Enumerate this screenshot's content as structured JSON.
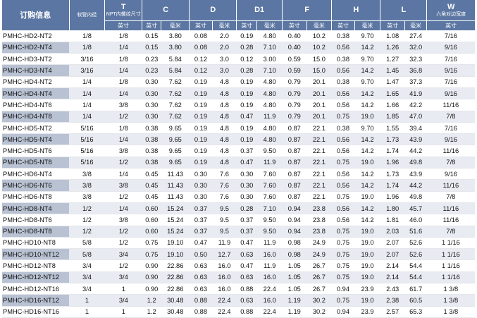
{
  "header": {
    "order_info": "订购信息",
    "hose_id": "软管内径",
    "t_letter": "T",
    "t_sub": "NPT内螺纹尺寸",
    "c": "C",
    "d": "D",
    "d1": "D1",
    "f": "F",
    "h": "H",
    "l": "L",
    "w_letter": "W",
    "w_sub": "六角对边宽度",
    "inch": "英寸",
    "mm": "毫米"
  },
  "rows": [
    [
      "PMHC-HD2-NT2",
      "1/8",
      "1/8",
      "0.15",
      "3.80",
      "0.08",
      "2.0",
      "0.19",
      "4.80",
      "0.40",
      "10.2",
      "0.38",
      "9.70",
      "1.08",
      "27.4",
      "7/16"
    ],
    [
      "PMHC-HD2-NT4",
      "1/8",
      "1/4",
      "0.15",
      "3.80",
      "0.08",
      "2.0",
      "0.28",
      "7.10",
      "0.40",
      "10.2",
      "0.56",
      "14.2",
      "1.26",
      "32.0",
      "9/16"
    ],
    [
      "PMHC-HD3-NT2",
      "3/16",
      "1/8",
      "0.23",
      "5.84",
      "0.12",
      "3.0",
      "0.12",
      "3.00",
      "0.59",
      "15.0",
      "0.38",
      "9.70",
      "1.27",
      "32.3",
      "7/16"
    ],
    [
      "PMHC-HD3-NT4",
      "3/16",
      "1/4",
      "0.23",
      "5.84",
      "0.12",
      "3.0",
      "0.28",
      "7.10",
      "0.59",
      "15.0",
      "0.56",
      "14.2",
      "1.45",
      "36.8",
      "9/16"
    ],
    [
      "PMHC-HD4-NT2",
      "1/4",
      "1/8",
      "0.30",
      "7.62",
      "0.19",
      "4.8",
      "0.19",
      "4.80",
      "0.79",
      "20.1",
      "0.38",
      "9.70",
      "1.47",
      "37.3",
      "7/16"
    ],
    [
      "PMHC-HD4-NT4",
      "1/4",
      "1/4",
      "0.30",
      "7.62",
      "0.19",
      "4.8",
      "0.19",
      "4.80",
      "0.79",
      "20.1",
      "0.56",
      "14.2",
      "1.65",
      "41.9",
      "9/16"
    ],
    [
      "PMHC-HD4-NT6",
      "1/4",
      "3/8",
      "0.30",
      "7.62",
      "0.19",
      "4.8",
      "0.19",
      "4.80",
      "0.79",
      "20.1",
      "0.56",
      "14.2",
      "1.66",
      "42.2",
      "11/16"
    ],
    [
      "PMHC-HD4-NT8",
      "1/4",
      "1/2",
      "0.30",
      "7.62",
      "0.19",
      "4.8",
      "0.47",
      "11.9",
      "0.79",
      "20.1",
      "0.75",
      "19.0",
      "1.85",
      "47.0",
      "7/8"
    ],
    [
      "PMHC-HD5-NT2",
      "5/16",
      "1/8",
      "0.38",
      "9.65",
      "0.19",
      "4.8",
      "0.19",
      "4.80",
      "0.87",
      "22.1",
      "0.38",
      "9.70",
      "1.55",
      "39.4",
      "7/16"
    ],
    [
      "PMHC-HD5-NT4",
      "5/16",
      "1/4",
      "0.38",
      "9.65",
      "0.19",
      "4.8",
      "0.19",
      "4.80",
      "0.87",
      "22.1",
      "0.56",
      "14.2",
      "1.73",
      "43.9",
      "9/16"
    ],
    [
      "PMHC-HD5-NT6",
      "5/16",
      "3/8",
      "0.38",
      "9.65",
      "0.19",
      "4.8",
      "0.37",
      "9.50",
      "0.87",
      "22.1",
      "0.56",
      "14.2",
      "1.74",
      "44.2",
      "11/16"
    ],
    [
      "PMHC-HD5-NT8",
      "5/16",
      "1/2",
      "0.38",
      "9.65",
      "0.19",
      "4.8",
      "0.47",
      "11.9",
      "0.87",
      "22.1",
      "0.75",
      "19.0",
      "1.96",
      "49.8",
      "7/8"
    ],
    [
      "PMHC-HD6-NT4",
      "3/8",
      "1/4",
      "0.45",
      "11.43",
      "0.30",
      "7.6",
      "0.30",
      "7.60",
      "0.87",
      "22.1",
      "0.56",
      "14.2",
      "1.73",
      "43.9",
      "9/16"
    ],
    [
      "PMHC-HD6-NT6",
      "3/8",
      "3/8",
      "0.45",
      "11.43",
      "0.30",
      "7.6",
      "0.30",
      "7.60",
      "0.87",
      "22.1",
      "0.56",
      "14.2",
      "1.74",
      "44.2",
      "11/16"
    ],
    [
      "PMHC-HD6-NT8",
      "3/8",
      "1/2",
      "0.45",
      "11.43",
      "0.30",
      "7.6",
      "0.30",
      "7.60",
      "0.87",
      "22.1",
      "0.75",
      "19.0",
      "1.96",
      "49.8",
      "7/8"
    ],
    [
      "PMHC-HD8-NT4",
      "1/2",
      "1/4",
      "0.60",
      "15.24",
      "0.37",
      "9.5",
      "0.28",
      "7.10",
      "0.94",
      "23.8",
      "0.56",
      "14.2",
      "1.80",
      "45.7",
      "11/16"
    ],
    [
      "PMHC-HD8-NT6",
      "1/2",
      "3/8",
      "0.60",
      "15.24",
      "0.37",
      "9.5",
      "0.37",
      "9.50",
      "0.94",
      "23.8",
      "0.56",
      "14.2",
      "1.81",
      "46.0",
      "11/16"
    ],
    [
      "PMHC-HD8-NT8",
      "1/2",
      "1/2",
      "0.60",
      "15.24",
      "0.37",
      "9.5",
      "0.37",
      "9.50",
      "0.94",
      "23.8",
      "0.75",
      "19.0",
      "2.03",
      "51.6",
      "7/8"
    ],
    [
      "PMHC-HD10-NT8",
      "5/8",
      "1/2",
      "0.75",
      "19.10",
      "0.47",
      "11.9",
      "0.47",
      "11.9",
      "0.98",
      "24.9",
      "0.75",
      "19.0",
      "2.07",
      "52.6",
      "1 1/16"
    ],
    [
      "PMHC-HD10-NT12",
      "5/8",
      "3/4",
      "0.75",
      "19.10",
      "0.50",
      "12.7",
      "0.63",
      "16.0",
      "0.98",
      "24.9",
      "0.75",
      "19.0",
      "2.07",
      "52.6",
      "1 1/16"
    ],
    [
      "PMHC-HD12-NT8",
      "3/4",
      "1/2",
      "0.90",
      "22.86",
      "0.63",
      "16.0",
      "0.47",
      "11.9",
      "1.05",
      "26.7",
      "0.75",
      "19.0",
      "2.14",
      "54.4",
      "1 1/16"
    ],
    [
      "PMHC-HD12-NT12",
      "3/4",
      "3/4",
      "0.90",
      "22.86",
      "0.63",
      "16.0",
      "0.63",
      "16.0",
      "1.05",
      "26.7",
      "0.75",
      "19.0",
      "2.14",
      "54.4",
      "1 1/16"
    ],
    [
      "PMHC-HD12-NT16",
      "3/4",
      "1",
      "0.90",
      "22.86",
      "0.63",
      "16.0",
      "0.88",
      "22.4",
      "1.05",
      "26.7",
      "0.94",
      "23.9",
      "2.43",
      "61.7",
      "1 3/8"
    ],
    [
      "PMHC-HD16-NT12",
      "1",
      "3/4",
      "1.2",
      "30.48",
      "0.88",
      "22.4",
      "0.63",
      "16.0",
      "1.19",
      "30.2",
      "0.75",
      "19.0",
      "2.38",
      "60.5",
      "1 3/8"
    ],
    [
      "PMHC-HD16-NT16",
      "1",
      "1",
      "1.2",
      "30.48",
      "0.88",
      "22.4",
      "0.88",
      "22.4",
      "1.19",
      "30.2",
      "0.94",
      "23.9",
      "2.57",
      "65.3",
      "1 3/8"
    ]
  ]
}
